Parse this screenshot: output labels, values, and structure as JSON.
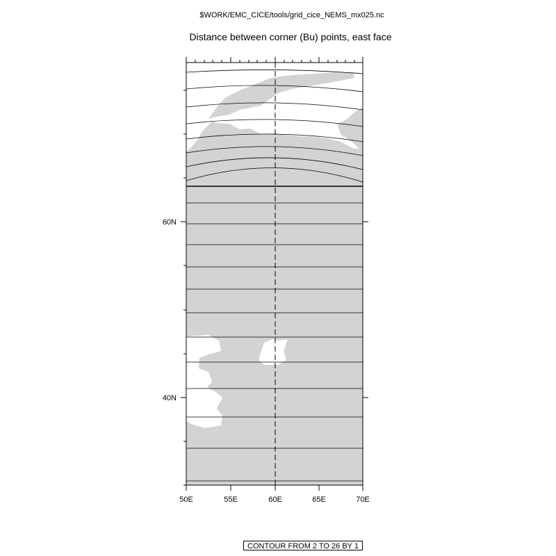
{
  "file_title": "$WORK/EMC_CICE/tools/grid_cice_NEMS_mx025.nc",
  "title": "Distance between corner (Bu) points, east face",
  "contour_info": "CONTOUR FROM 2 TO 26 BY 1",
  "map": {
    "lon_range": [
      50,
      70
    ],
    "lat_range": [
      30,
      78
    ],
    "lon_ticks": [
      "50E",
      "55E",
      "60E",
      "65E",
      "70E"
    ],
    "lat_ticks": [
      "40N",
      "60N"
    ],
    "land_color": "#d3d3d3",
    "ocean_color": "#ffffff",
    "contour_color": "#000000"
  }
}
